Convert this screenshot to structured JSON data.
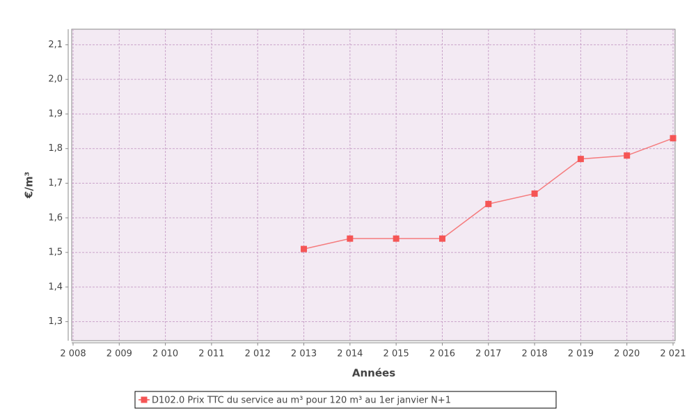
{
  "chart_data": {
    "type": "line",
    "x_label": "Années",
    "y_label": "€/m³",
    "x": [
      2013,
      2014,
      2015,
      2016,
      2017,
      2018,
      2019,
      2020,
      2021
    ],
    "series": [
      {
        "name": "D102.0 Prix TTC du service au m³ pour 120 m³ au 1er janvier N+1",
        "color": "#f55555",
        "values": [
          1.51,
          1.54,
          1.54,
          1.54,
          1.64,
          1.67,
          1.77,
          1.78,
          1.83
        ]
      }
    ],
    "xlim": [
      2007.97,
      2021.045
    ],
    "xticks": [
      {
        "value": 2008,
        "label": "2 008"
      },
      {
        "value": 2009,
        "label": "2 009"
      },
      {
        "value": 2010,
        "label": "2 010"
      },
      {
        "value": 2011,
        "label": "2 011"
      },
      {
        "value": 2012,
        "label": "2 012"
      },
      {
        "value": 2013,
        "label": "2 013"
      },
      {
        "value": 2014,
        "label": "2 014"
      },
      {
        "value": 2015,
        "label": "2 015"
      },
      {
        "value": 2016,
        "label": "2 016"
      },
      {
        "value": 2017,
        "label": "2 017"
      },
      {
        "value": 2018,
        "label": "2 018"
      },
      {
        "value": 2019,
        "label": "2 019"
      },
      {
        "value": 2020,
        "label": "2 020"
      },
      {
        "value": 2021,
        "label": "2 021"
      }
    ],
    "ylim": [
      1.245,
      2.145
    ],
    "yticks": [
      {
        "value": 1.3,
        "label": "1,3"
      },
      {
        "value": 1.4,
        "label": "1,4"
      },
      {
        "value": 1.5,
        "label": "1,5"
      },
      {
        "value": 1.6,
        "label": "1,6"
      },
      {
        "value": 1.7,
        "label": "1,7"
      },
      {
        "value": 1.8,
        "label": "1,8"
      },
      {
        "value": 1.9,
        "label": "1,9"
      },
      {
        "value": 2.0,
        "label": "2,0"
      },
      {
        "value": 2.1,
        "label": "2,1"
      }
    ],
    "grid": true
  }
}
